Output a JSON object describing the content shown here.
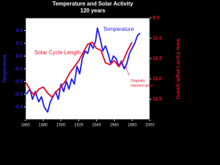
{
  "chart_data": {
    "type": "line",
    "title": "Temperature and Solar Activity",
    "subtitle": "120 years",
    "y_label": "Temperature",
    "y2_label": "Solar Cycle Length (years)",
    "xlim": [
      1860,
      2000
    ],
    "xticks": [
      1860,
      1880,
      1900,
      1920,
      1940,
      1960,
      1980,
      2000
    ],
    "ylim": [
      -0.5,
      0.3
    ],
    "yticks": [
      0.2,
      0.1,
      {
        "value": 0,
        "label": "0.0"
      },
      -0.1,
      -0.2,
      -0.3,
      -0.4
    ],
    "y2lim": [
      9.5,
      12
    ],
    "y2_inverted": true,
    "y2ticks": [
      9.5,
      {
        "value": 10,
        "label": "10.0"
      },
      10.5,
      {
        "value": 11,
        "label": "11.0"
      },
      11.5
    ],
    "series": [
      {
        "name": "Temperature",
        "color": "#2424ee",
        "x": [
          1861,
          1865,
          1868,
          1871,
          1875,
          1878,
          1881,
          1885,
          1888,
          1891,
          1894,
          1897,
          1900,
          1903,
          1906,
          1909,
          1912,
          1915,
          1918,
          1921,
          1924,
          1927,
          1930,
          1933,
          1936,
          1939,
          1941,
          1944,
          1947,
          1950,
          1953,
          1956,
          1959,
          1962,
          1965,
          1968,
          1971,
          1974,
          1977,
          1980,
          1983,
          1986,
          1989
        ],
        "values": [
          -0.3,
          -0.26,
          -0.34,
          -0.28,
          -0.36,
          -0.32,
          -0.4,
          -0.44,
          -0.36,
          -0.32,
          -0.28,
          -0.34,
          -0.22,
          -0.28,
          -0.2,
          -0.26,
          -0.18,
          -0.22,
          -0.08,
          -0.14,
          -0.02,
          0.04,
          0.02,
          0.1,
          0.06,
          0.12,
          0.22,
          0.14,
          0.04,
          0.08,
          0.02,
          -0.06,
          0,
          -0.02,
          -0.08,
          -0.04,
          -0.1,
          -0.06,
          0.02,
          0.06,
          0.1,
          0.16,
          0.18
        ]
      },
      {
        "name": "Solar Cycle Length",
        "color": "#e8102a",
        "axis": "y2",
        "x": [
          1861,
          1866,
          1870,
          1875,
          1880,
          1885,
          1890,
          1895,
          1900,
          1905,
          1910,
          1915,
          1920,
          1925,
          1930,
          1935,
          1940,
          1945,
          1950,
          1955,
          1960,
          1965,
          1970,
          1975,
          1980
        ],
        "values": [
          11.1,
          11.3,
          11.4,
          11.25,
          11.2,
          11.35,
          11.45,
          11.3,
          11.2,
          11.05,
          10.85,
          10.7,
          10.55,
          10.35,
          10.15,
          10.1,
          10.25,
          10.3,
          10.6,
          10.65,
          10.55,
          10.7,
          10.55,
          10.3,
          10.1
        ]
      }
    ],
    "annotations": [
      "Originally reported upturn"
    ],
    "background": "#000000",
    "plot_background": "#ffffff"
  }
}
